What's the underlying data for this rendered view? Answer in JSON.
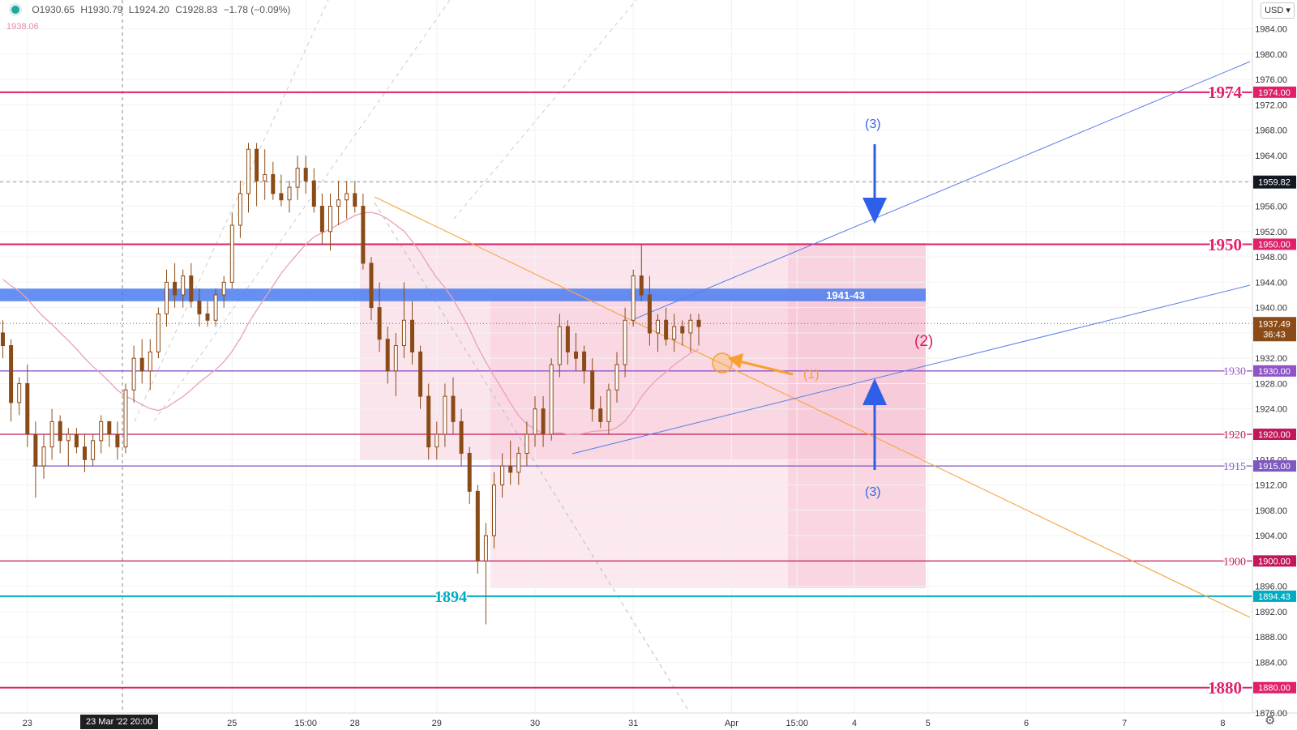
{
  "header": {
    "open": "O1930.65",
    "high": "H1930.79",
    "low": "L1924.20",
    "close": "C1928.83",
    "change": "−1.78 (−0.09%)",
    "ma_value": "1938.06",
    "currency": "USD",
    "crosshair_time": "23 Mar '22  20:00"
  },
  "chart_data": {
    "type": "candlestick",
    "symbol_currency": "USD",
    "ylim": [
      1876,
      1986
    ],
    "y_ticks": [
      "1876.00",
      "1880.00",
      "1884.00",
      "1888.00",
      "1892.00",
      "1896.00",
      "1900.00",
      "1904.00",
      "1908.00",
      "1912.00",
      "1916.00",
      "1920.00",
      "1924.00",
      "1928.00",
      "1932.00",
      "1936.00",
      "1940.00",
      "1944.00",
      "1948.00",
      "1952.00",
      "1956.00",
      "1960.00",
      "1964.00",
      "1968.00",
      "1972.00",
      "1976.00",
      "1980.00",
      "1984.00"
    ],
    "x_ticks": [
      {
        "label": "23",
        "i": 3
      },
      {
        "label": "25",
        "i": 28
      },
      {
        "label": "15:00",
        "i": 37
      },
      {
        "label": "28",
        "i": 43
      },
      {
        "label": "29",
        "i": 53
      },
      {
        "label": "30",
        "i": 65
      },
      {
        "label": "31",
        "i": 77
      },
      {
        "label": "Apr",
        "i": 89
      },
      {
        "label": "15:00",
        "i": 97
      },
      {
        "label": "4",
        "i": 104
      },
      {
        "label": "5",
        "i": 113
      },
      {
        "label": "6",
        "i": 125
      },
      {
        "label": "7",
        "i": 137
      },
      {
        "label": "8",
        "i": 149
      }
    ],
    "candles": [
      [
        1936,
        1938,
        1932,
        1934
      ],
      [
        1934,
        1935,
        1922,
        1925
      ],
      [
        1925,
        1929,
        1923,
        1928
      ],
      [
        1928,
        1931,
        1918,
        1920
      ],
      [
        1920,
        1922,
        1910,
        1915
      ],
      [
        1915,
        1920,
        1913,
        1918
      ],
      [
        1918,
        1924,
        1916,
        1922
      ],
      [
        1922,
        1923,
        1917,
        1919
      ],
      [
        1919,
        1921,
        1915,
        1920
      ],
      [
        1920,
        1921,
        1917,
        1918
      ],
      [
        1918,
        1920,
        1914,
        1916
      ],
      [
        1916,
        1920,
        1915,
        1919
      ],
      [
        1919,
        1923,
        1917,
        1922
      ],
      [
        1922,
        1922,
        1918,
        1920
      ],
      [
        1920,
        1922,
        1916,
        1918
      ],
      [
        1918,
        1928,
        1917,
        1927
      ],
      [
        1927,
        1934,
        1925,
        1932
      ],
      [
        1932,
        1935,
        1928,
        1930
      ],
      [
        1930,
        1935,
        1927,
        1933
      ],
      [
        1933,
        1940,
        1932,
        1939
      ],
      [
        1939,
        1946,
        1937,
        1944
      ],
      [
        1944,
        1947,
        1940,
        1942
      ],
      [
        1942,
        1946,
        1940,
        1945
      ],
      [
        1945,
        1947,
        1940,
        1941
      ],
      [
        1941,
        1943,
        1937,
        1939
      ],
      [
        1939,
        1941,
        1937,
        1938
      ],
      [
        1938,
        1943,
        1937,
        1942
      ],
      [
        1942,
        1945,
        1940,
        1944
      ],
      [
        1944,
        1955,
        1943,
        1953
      ],
      [
        1953,
        1960,
        1951,
        1958
      ],
      [
        1958,
        1966,
        1955,
        1965
      ],
      [
        1965,
        1966,
        1956,
        1960
      ],
      [
        1960,
        1965,
        1957,
        1961
      ],
      [
        1961,
        1963,
        1957,
        1958
      ],
      [
        1958,
        1961,
        1956,
        1957
      ],
      [
        1957,
        1960,
        1955,
        1959
      ],
      [
        1959,
        1964,
        1957,
        1962
      ],
      [
        1962,
        1964,
        1958,
        1960
      ],
      [
        1960,
        1962,
        1955,
        1956
      ],
      [
        1956,
        1958,
        1950,
        1952
      ],
      [
        1952,
        1958,
        1949,
        1956
      ],
      [
        1956,
        1960,
        1953,
        1957
      ],
      [
        1957,
        1960,
        1954,
        1958
      ],
      [
        1958,
        1960,
        1955,
        1956
      ],
      [
        1956,
        1958,
        1946,
        1947
      ],
      [
        1947,
        1948,
        1938,
        1940
      ],
      [
        1940,
        1944,
        1933,
        1935
      ],
      [
        1935,
        1937,
        1928,
        1930
      ],
      [
        1930,
        1936,
        1926,
        1934
      ],
      [
        1934,
        1944,
        1932,
        1938
      ],
      [
        1938,
        1941,
        1931,
        1933
      ],
      [
        1933,
        1934,
        1924,
        1926
      ],
      [
        1926,
        1928,
        1916,
        1918
      ],
      [
        1918,
        1922,
        1916,
        1920
      ],
      [
        1920,
        1928,
        1918,
        1926
      ],
      [
        1926,
        1929,
        1920,
        1922
      ],
      [
        1922,
        1924,
        1915,
        1917
      ],
      [
        1917,
        1918,
        1909,
        1911
      ],
      [
        1911,
        1912,
        1898,
        1900
      ],
      [
        1900,
        1906,
        1890,
        1904
      ],
      [
        1904,
        1914,
        1902,
        1912
      ],
      [
        1912,
        1917,
        1910,
        1915
      ],
      [
        1915,
        1919,
        1912,
        1914
      ],
      [
        1914,
        1918,
        1912,
        1917
      ],
      [
        1917,
        1922,
        1915,
        1920
      ],
      [
        1920,
        1926,
        1918,
        1924
      ],
      [
        1924,
        1926,
        1918,
        1920
      ],
      [
        1920,
        1932,
        1919,
        1931
      ],
      [
        1931,
        1939,
        1929,
        1937
      ],
      [
        1937,
        1938,
        1931,
        1933
      ],
      [
        1933,
        1936,
        1930,
        1932
      ],
      [
        1933,
        1934,
        1928,
        1930
      ],
      [
        1930,
        1932,
        1922,
        1924
      ],
      [
        1924,
        1926,
        1921,
        1922
      ],
      [
        1922,
        1928,
        1920,
        1927
      ],
      [
        1927,
        1933,
        1925,
        1931
      ],
      [
        1931,
        1940,
        1929,
        1938
      ],
      [
        1938,
        1946,
        1937,
        1945
      ],
      [
        1945,
        1950,
        1941,
        1942
      ],
      [
        1942,
        1945,
        1934,
        1936
      ],
      [
        1936,
        1939,
        1933,
        1938
      ],
      [
        1938,
        1940,
        1934,
        1935
      ],
      [
        1935,
        1939,
        1933,
        1937
      ],
      [
        1937,
        1938,
        1934,
        1936
      ],
      [
        1936,
        1939,
        1933,
        1938
      ],
      [
        1938,
        1939,
        1934,
        1937
      ]
    ],
    "last_price": "1937.49",
    "countdown": "36:43",
    "crosshair_price": "1959.82",
    "levels": [
      {
        "price": 1974,
        "label": "1974",
        "tag": "1974.00",
        "color": "#e0206a"
      },
      {
        "price": 1950,
        "label": "1950",
        "tag": "1950.00",
        "color": "#e0206a"
      },
      {
        "price": 1930,
        "label": "1930",
        "tag": "1930.00",
        "color": "#8e54c8"
      },
      {
        "price": 1920,
        "label": "1920",
        "tag": "1920.00",
        "color": "#c2185b"
      },
      {
        "price": 1915,
        "label": "1915",
        "tag": "1915.00",
        "color": "#7e57c2"
      },
      {
        "price": 1900,
        "label": "1900",
        "tag": "1900.00",
        "color": "#c2185b"
      },
      {
        "price": 1894.43,
        "label": "1894",
        "tag": "1894.43",
        "color": "#00acc1"
      },
      {
        "price": 1880,
        "label": "1880",
        "tag": "1880.00",
        "color": "#e0206a"
      }
    ],
    "zone": {
      "label": "1941-43",
      "low": 1941,
      "high": 1943,
      "color": "#4a7cf0"
    },
    "annotations": [
      "(1)",
      "(2)",
      "(3)",
      "(3)"
    ]
  }
}
